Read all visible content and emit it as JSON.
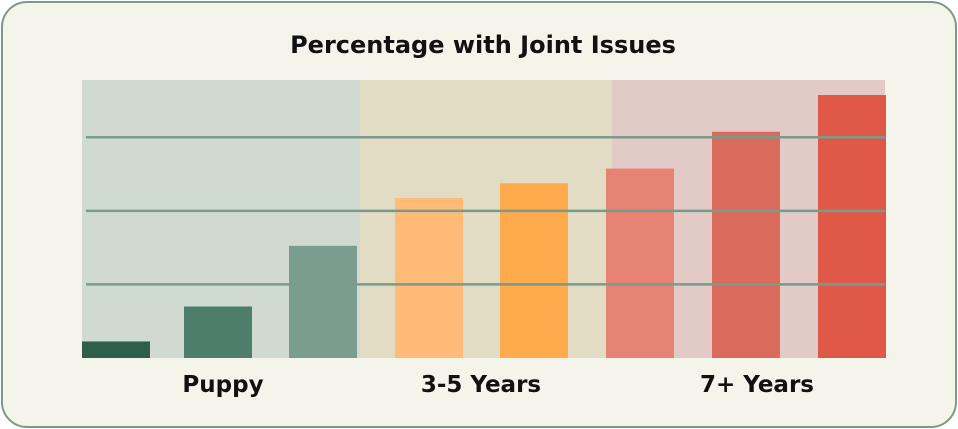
{
  "chart_data": {
    "type": "bar",
    "title": "Percentage with Joint Issues",
    "xlabel": "",
    "ylabel": "",
    "ylim": [
      0,
      80
    ],
    "grid": true,
    "yticks_visible": false,
    "groups": [
      {
        "label": "Puppy",
        "band_color": "#d0dad0",
        "values": [
          4.5,
          14,
          30.5
        ],
        "colors": [
          "#2f5e4a",
          "#4f7d6b",
          "#7b9d90"
        ]
      },
      {
        "label": "3-5 Years",
        "band_color": "#e3dcc4",
        "values": [
          43.5,
          47.5
        ],
        "colors": [
          "#ffbb77",
          "#ffab4d"
        ]
      },
      {
        "label": "7+ Years",
        "band_color": "#e2cbc6",
        "values": [
          51.5,
          61.5,
          71.5
        ],
        "colors": [
          "#e78375",
          "#d96a5c",
          "#df5848"
        ]
      }
    ],
    "gridlines": [
      20,
      40,
      60
    ]
  }
}
